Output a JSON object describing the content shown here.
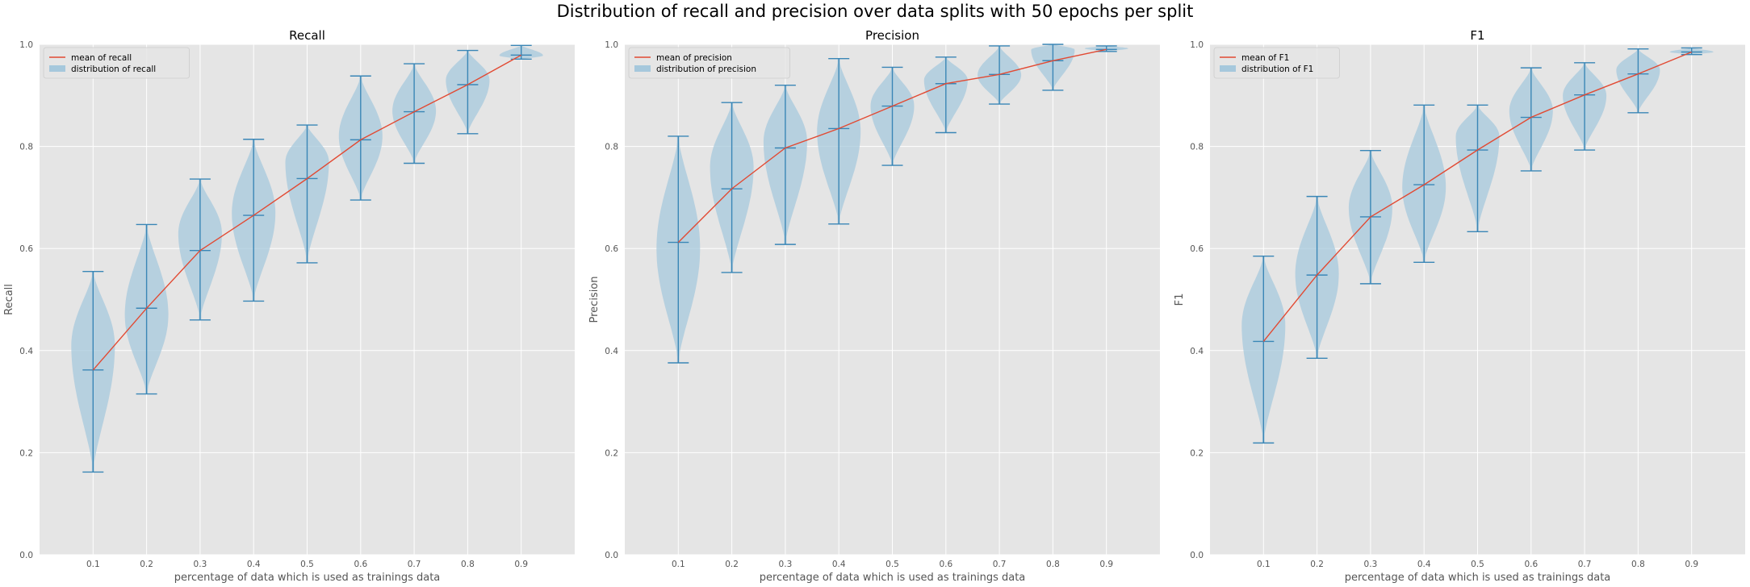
{
  "figure": {
    "suptitle": "Distribution of recall and precision over data splits with 50 epochs per split"
  },
  "colors": {
    "background": "#e5e5e5",
    "grid": "#ffffff",
    "violin_fill": "#a6c8dc",
    "violin_line": "#3a86b6",
    "mean_line": "#e24a33",
    "text": "#555555"
  },
  "chart_data": [
    {
      "type": "violin",
      "title": "Recall",
      "xlabel": "percentage of data which is used as trainings data",
      "ylabel": "Recall",
      "x": [
        0.1,
        0.2,
        0.3,
        0.4,
        0.5,
        0.6,
        0.7,
        0.8,
        0.9
      ],
      "x_tick_labels": [
        "0.1",
        "0.2",
        "0.3",
        "0.4",
        "0.5",
        "0.6",
        "0.7",
        "0.8",
        "0.9"
      ],
      "ylim": [
        0.0,
        1.0
      ],
      "y_ticks": [
        0.0,
        0.2,
        0.4,
        0.6,
        0.8,
        1.0
      ],
      "y_tick_labels": [
        "0.0",
        "0.2",
        "0.4",
        "0.6",
        "0.8",
        "1.0"
      ],
      "grid": true,
      "legend_position": "top-left",
      "legend": [
        "mean of recall",
        "distribution of recall"
      ],
      "mean": [
        0.362,
        0.483,
        0.596,
        0.665,
        0.737,
        0.813,
        0.868,
        0.921,
        0.979
      ],
      "min": [
        0.162,
        0.315,
        0.46,
        0.497,
        0.572,
        0.695,
        0.767,
        0.825,
        0.971
      ],
      "max": [
        0.555,
        0.647,
        0.736,
        0.814,
        0.842,
        0.938,
        0.962,
        0.988,
        0.998
      ],
      "mode": [
        0.41,
        0.47,
        0.63,
        0.67,
        0.77,
        0.82,
        0.87,
        0.93,
        0.978
      ]
    },
    {
      "type": "violin",
      "title": "Precision",
      "xlabel": "percentage of data which is used as trainings data",
      "ylabel": "Precision",
      "x": [
        0.1,
        0.2,
        0.3,
        0.4,
        0.5,
        0.6,
        0.7,
        0.8,
        0.9
      ],
      "x_tick_labels": [
        "0.1",
        "0.2",
        "0.3",
        "0.4",
        "0.5",
        "0.6",
        "0.7",
        "0.8",
        "0.9"
      ],
      "ylim": [
        0.0,
        1.0
      ],
      "y_ticks": [
        0.0,
        0.2,
        0.4,
        0.6,
        0.8,
        1.0
      ],
      "y_tick_labels": [
        "0.0",
        "0.2",
        "0.4",
        "0.6",
        "0.8",
        "1.0"
      ],
      "grid": true,
      "legend_position": "top-left",
      "legend": [
        "mean of precision",
        "distribution of precision"
      ],
      "mean": [
        0.612,
        0.717,
        0.797,
        0.835,
        0.879,
        0.923,
        0.941,
        0.968,
        0.99
      ],
      "min": [
        0.376,
        0.553,
        0.608,
        0.648,
        0.763,
        0.827,
        0.883,
        0.91,
        0.986
      ],
      "max": [
        0.82,
        0.886,
        0.92,
        0.972,
        0.955,
        0.975,
        0.997,
        1.0,
        0.997
      ],
      "mode": [
        0.6,
        0.76,
        0.81,
        0.83,
        0.88,
        0.93,
        0.94,
        0.99,
        0.992
      ]
    },
    {
      "type": "violin",
      "title": "F1",
      "xlabel": "percentage of data which is used as trainings data",
      "ylabel": "F1",
      "x": [
        0.1,
        0.2,
        0.3,
        0.4,
        0.5,
        0.6,
        0.7,
        0.8,
        0.9
      ],
      "x_tick_labels": [
        "0.1",
        "0.2",
        "0.3",
        "0.4",
        "0.5",
        "0.6",
        "0.7",
        "0.8",
        "0.9"
      ],
      "ylim": [
        0.0,
        1.0
      ],
      "y_ticks": [
        0.0,
        0.2,
        0.4,
        0.6,
        0.8,
        1.0
      ],
      "y_tick_labels": [
        "0.0",
        "0.2",
        "0.4",
        "0.6",
        "0.8",
        "1.0"
      ],
      "grid": true,
      "legend_position": "top-left",
      "legend": [
        "mean of F1",
        "distribution of F1"
      ],
      "mean": [
        0.418,
        0.548,
        0.662,
        0.725,
        0.793,
        0.857,
        0.901,
        0.942,
        0.985
      ],
      "min": [
        0.219,
        0.385,
        0.531,
        0.573,
        0.633,
        0.752,
        0.793,
        0.866,
        0.98
      ],
      "max": [
        0.585,
        0.702,
        0.792,
        0.881,
        0.881,
        0.954,
        0.964,
        0.991,
        0.993
      ],
      "mode": [
        0.45,
        0.55,
        0.68,
        0.72,
        0.82,
        0.87,
        0.9,
        0.95,
        0.985
      ]
    }
  ]
}
